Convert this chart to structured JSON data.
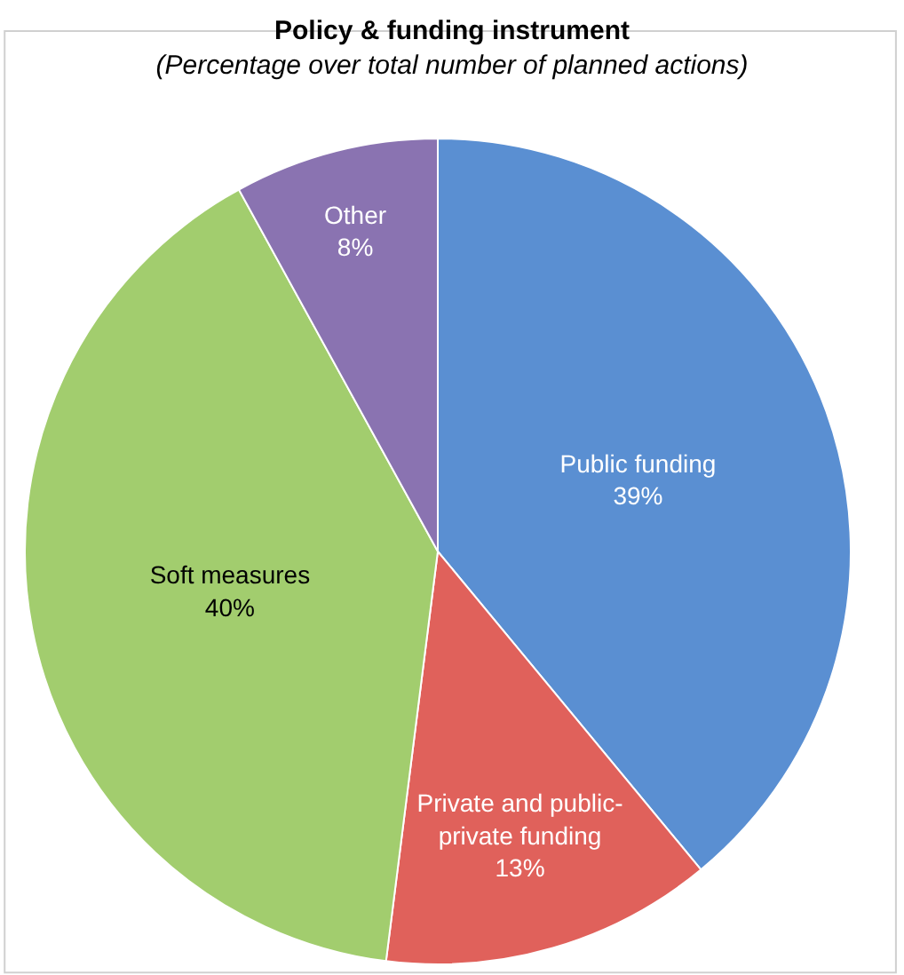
{
  "chart_data": {
    "type": "pie",
    "title": "Policy & funding instrument",
    "subtitle": "(Percentage over total number of planned actions)",
    "categories": [
      "Public funding",
      "Private and public-private funding",
      "Soft measures",
      "Other"
    ],
    "values": [
      39,
      13,
      40,
      8
    ],
    "value_labels": [
      "39%",
      "13%",
      "40%",
      "8%"
    ],
    "colors": [
      "#5a8fd2",
      "#e0615b",
      "#a2cd6e",
      "#8a73b1"
    ],
    "legend": false
  }
}
